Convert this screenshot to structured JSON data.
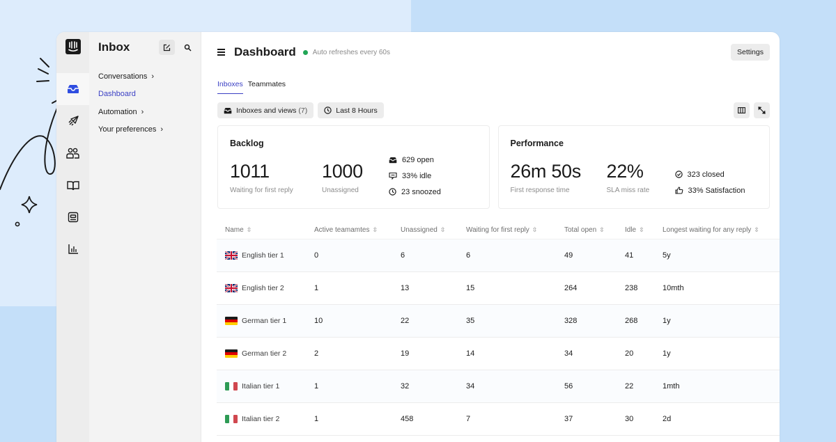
{
  "app": {
    "rail": {
      "logo": "intercom-logo-icon",
      "items": [
        {
          "name": "inbox-icon",
          "active": true
        },
        {
          "name": "outbound-send-icon",
          "active": false
        },
        {
          "name": "contacts-people-icon",
          "active": false
        },
        {
          "name": "knowledge-book-icon",
          "active": false
        },
        {
          "name": "messenger-icon",
          "active": false
        },
        {
          "name": "reports-chart-icon",
          "active": false
        }
      ]
    },
    "subnav": {
      "title": "Inbox",
      "compose_icon": "compose-icon",
      "search_icon": "search-icon",
      "items": [
        {
          "label": "Conversations",
          "chevron": "›",
          "active": false
        },
        {
          "label": "Dashboard",
          "chevron": "",
          "active": true
        },
        {
          "label": "Automation",
          "chevron": "›",
          "active": false
        },
        {
          "label": "Your preferences",
          "chevron": "›",
          "active": false
        }
      ]
    }
  },
  "header": {
    "title": "Dashboard",
    "status_color": "#21a656",
    "refresh_text": "Auto refreshes every 60s",
    "settings_label": "Settings"
  },
  "tabs": [
    {
      "label": "Inboxes",
      "active": true
    },
    {
      "label": "Teammates",
      "active": false
    }
  ],
  "filters": {
    "inboxes_label": "Inboxes and views",
    "inboxes_count": "(7)",
    "time_label": "Last 8 Hours",
    "columns_icon": "columns-icon",
    "expand_icon": "expand-icon"
  },
  "backlog": {
    "title": "Backlog",
    "metrics": [
      {
        "value": "1011",
        "caption": "Waiting for first reply"
      },
      {
        "value": "1000",
        "caption": "Unassigned"
      }
    ],
    "stats": [
      {
        "icon": "inbox-tray-icon",
        "text": "629 open"
      },
      {
        "icon": "chat-idle-icon",
        "text": "33% idle"
      },
      {
        "icon": "clock-icon",
        "text": "23 snoozed"
      }
    ]
  },
  "performance": {
    "title": "Performance",
    "metrics": [
      {
        "value": "26m 50s",
        "caption": "First response time"
      },
      {
        "value": "22%",
        "caption": "SLA miss rate"
      }
    ],
    "stats": [
      {
        "icon": "check-circle-icon",
        "text": "323 closed"
      },
      {
        "icon": "thumbs-up-icon",
        "text": "33% Satisfaction"
      }
    ]
  },
  "table": {
    "sort_glyph": "⌃⌄",
    "columns": [
      "Name",
      "Active teamamtes",
      "Unassigned",
      "Waiting for first reply",
      "Total open",
      "Idle",
      "Longest waiting for any reply"
    ],
    "rows": [
      {
        "flag": "uk",
        "name": "English tier 1",
        "active": "0",
        "unassigned": "6",
        "waiting": "6",
        "total_open": "49",
        "idle": "41",
        "longest": "5y"
      },
      {
        "flag": "uk",
        "name": "English tier 2",
        "active": "1",
        "unassigned": "13",
        "waiting": "15",
        "total_open": "264",
        "idle": "238",
        "longest": "10mth"
      },
      {
        "flag": "de",
        "name": "German tier 1",
        "active": "10",
        "unassigned": "22",
        "waiting": "35",
        "total_open": "328",
        "idle": "268",
        "longest": "1y"
      },
      {
        "flag": "de",
        "name": "German tier 2",
        "active": "2",
        "unassigned": "19",
        "waiting": "14",
        "total_open": "34",
        "idle": "20",
        "longest": "1y"
      },
      {
        "flag": "it",
        "name": "Italian tier 1",
        "active": "1",
        "unassigned": "32",
        "waiting": "34",
        "total_open": "56",
        "idle": "22",
        "longest": "1mth"
      },
      {
        "flag": "it",
        "name": "Italian tier 2",
        "active": "1",
        "unassigned": "458",
        "waiting": "7",
        "total_open": "37",
        "idle": "30",
        "longest": "2d"
      }
    ]
  },
  "colors": {
    "accent": "#3a3fc4",
    "rail_active_icon": "#2f4de0",
    "background": "#c4dff9"
  }
}
